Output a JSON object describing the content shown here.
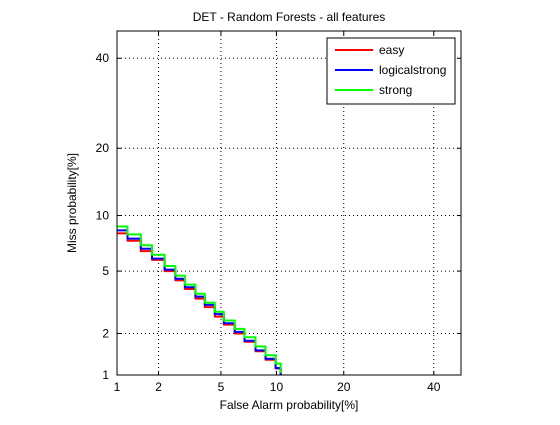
{
  "chart_data": {
    "type": "line",
    "title": "DET - Random Forests - all features",
    "xlabel": "False Alarm probability[%]",
    "ylabel": "Miss probability[%]",
    "scale": "normal-deviate (probit)",
    "xlim": [
      1,
      47
    ],
    "ylim": [
      1,
      47
    ],
    "x_ticks": [
      1,
      2,
      5,
      10,
      20,
      40
    ],
    "y_ticks": [
      1,
      2,
      5,
      10,
      20,
      40
    ],
    "x_tick_labels": [
      "1",
      "2",
      "5",
      "10",
      "20",
      "40"
    ],
    "y_tick_labels": [
      "1",
      "2",
      "5",
      "10",
      "20",
      "40"
    ],
    "grid": true,
    "legend_position": "top-right",
    "series": [
      {
        "name": "easy",
        "color": "#ff0000",
        "x": [
          1.0,
          1.2,
          1.5,
          1.8,
          2.2,
          2.6,
          3.0,
          3.5,
          4.0,
          4.6,
          5.2,
          6.0,
          6.8,
          7.8,
          8.8,
          9.9,
          10.5
        ],
        "y": [
          8.1,
          7.4,
          6.5,
          5.8,
          5.0,
          4.4,
          3.9,
          3.4,
          3.0,
          2.6,
          2.3,
          2.0,
          1.75,
          1.5,
          1.3,
          1.12,
          1.0
        ]
      },
      {
        "name": "logicalstrong",
        "color": "#0000ff",
        "x": [
          1.0,
          1.2,
          1.5,
          1.8,
          2.2,
          2.6,
          3.0,
          3.5,
          4.0,
          4.6,
          5.2,
          6.0,
          6.8,
          7.8,
          8.8,
          9.9,
          10.5
        ],
        "y": [
          8.4,
          7.6,
          6.7,
          5.9,
          5.1,
          4.5,
          4.0,
          3.5,
          3.1,
          2.7,
          2.35,
          2.05,
          1.78,
          1.52,
          1.32,
          1.13,
          1.0
        ]
      },
      {
        "name": "strong",
        "color": "#00ff00",
        "x": [
          1.0,
          1.2,
          1.5,
          1.8,
          2.2,
          2.6,
          3.0,
          3.5,
          4.0,
          4.6,
          5.2,
          6.0,
          6.8,
          7.8,
          8.8,
          9.9,
          10.5
        ],
        "y": [
          8.8,
          8.0,
          7.0,
          6.2,
          5.35,
          4.7,
          4.15,
          3.65,
          3.2,
          2.8,
          2.45,
          2.15,
          1.88,
          1.62,
          1.4,
          1.22,
          1.05
        ]
      }
    ]
  }
}
